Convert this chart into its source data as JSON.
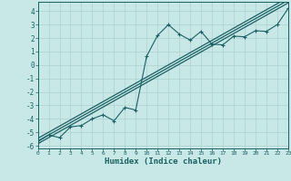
{
  "xlabel": "Humidex (Indice chaleur)",
  "bg_color": "#c8e8e8",
  "grid_color": "#b0d4d4",
  "line_color": "#1a6060",
  "xlim": [
    0,
    23
  ],
  "ylim": [
    -6.2,
    4.7
  ],
  "xtick_vals": [
    0,
    1,
    2,
    3,
    4,
    5,
    6,
    7,
    8,
    9,
    10,
    11,
    12,
    13,
    14,
    15,
    16,
    17,
    18,
    19,
    20,
    21,
    22,
    23
  ],
  "ytick_vals": [
    -6,
    -5,
    -4,
    -3,
    -2,
    -1,
    0,
    1,
    2,
    3,
    4
  ],
  "scatter_x": [
    0,
    1,
    2,
    3,
    4,
    5,
    6,
    7,
    8,
    9,
    10,
    11,
    12,
    13,
    14,
    15,
    16,
    17,
    18,
    19,
    20,
    21,
    22,
    23
  ],
  "scatter_y": [
    -5.7,
    -5.2,
    -5.4,
    -4.6,
    -4.5,
    -4.0,
    -3.7,
    -4.15,
    -3.15,
    -3.35,
    0.65,
    2.2,
    3.0,
    2.3,
    1.85,
    2.5,
    1.55,
    1.5,
    2.15,
    2.1,
    2.55,
    2.5,
    3.0,
    4.2
  ],
  "reg_lines": [
    {
      "slope": 0.455,
      "intercept": -5.45
    },
    {
      "slope": 0.455,
      "intercept": -5.65
    },
    {
      "slope": 0.455,
      "intercept": -5.85
    }
  ]
}
